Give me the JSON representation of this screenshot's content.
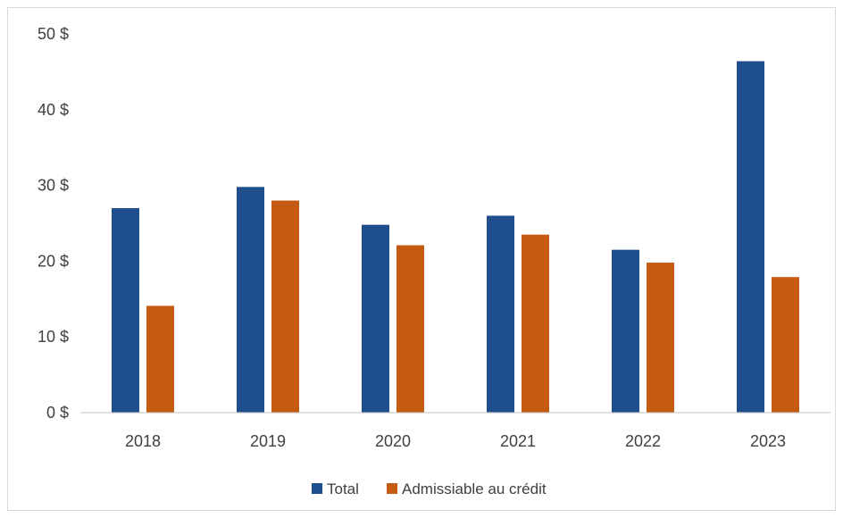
{
  "chart_data": {
    "type": "bar",
    "title": "",
    "xlabel": "",
    "ylabel": "",
    "categories": [
      "2018",
      "2019",
      "2020",
      "2021",
      "2022",
      "2023"
    ],
    "series": [
      {
        "name": "Total",
        "color": "#1f4e8c",
        "values": [
          27.0,
          29.8,
          24.8,
          26.0,
          21.5,
          46.4
        ]
      },
      {
        "name": "Admissiable au crédit",
        "color": "#c55a11",
        "values": [
          14.1,
          28.0,
          22.1,
          23.5,
          19.8,
          17.9
        ]
      }
    ],
    "ylim": [
      0,
      50
    ],
    "yticks": [
      0,
      10,
      20,
      30,
      40,
      50
    ],
    "ytick_labels": [
      "0 $",
      "10 $",
      "20 $",
      "30 $",
      "40 $",
      "50 $"
    ],
    "grid": false,
    "legend_position": "bottom"
  }
}
